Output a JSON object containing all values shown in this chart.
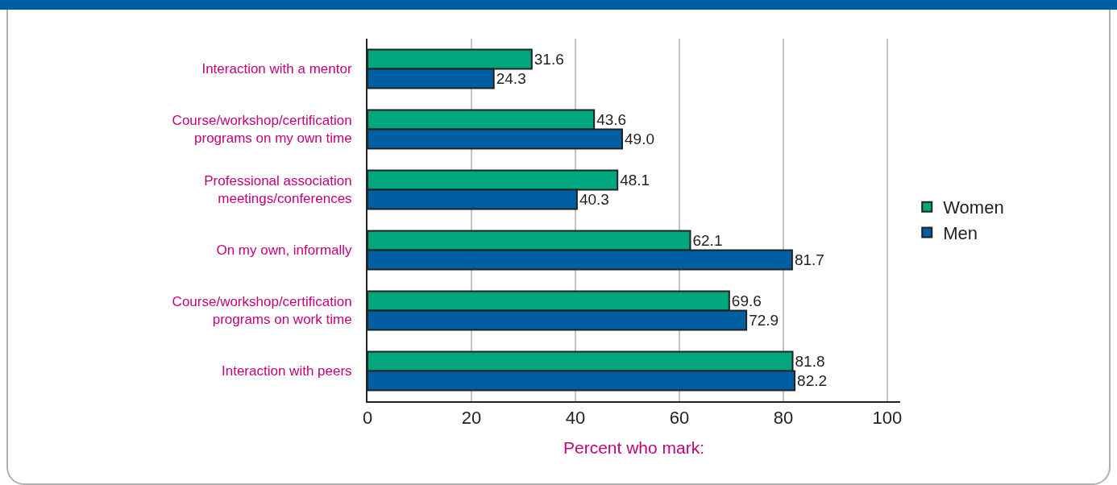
{
  "chart_data": {
    "type": "bar",
    "orientation": "horizontal",
    "categories": [
      "Interaction with a mentor",
      "Course/workshop/certification\nprograms on my own time",
      "Professional association\nmeetings/conferences",
      "On my own, informally",
      "Course/workshop/certification\nprograms on work time",
      "Interaction with peers"
    ],
    "series": [
      {
        "name": "Women",
        "color": "#00a67e",
        "values": [
          31.6,
          43.6,
          48.1,
          62.1,
          69.6,
          81.8
        ],
        "value_labels": [
          "31.6",
          "43.6",
          "48.1",
          "62.1",
          "69.6",
          "81.8"
        ]
      },
      {
        "name": "Men",
        "color": "#005ea2",
        "values": [
          24.3,
          49.0,
          40.3,
          81.7,
          72.9,
          82.2
        ],
        "value_labels": [
          "24.3",
          "49.0",
          "40.3",
          "81.7",
          "72.9",
          "82.2"
        ]
      }
    ],
    "xlabel": "Percent who mark:",
    "xlim": [
      0,
      102.5
    ],
    "xticks": [
      0,
      20,
      40,
      60,
      80,
      100
    ],
    "grid": "x",
    "legend": "right"
  }
}
